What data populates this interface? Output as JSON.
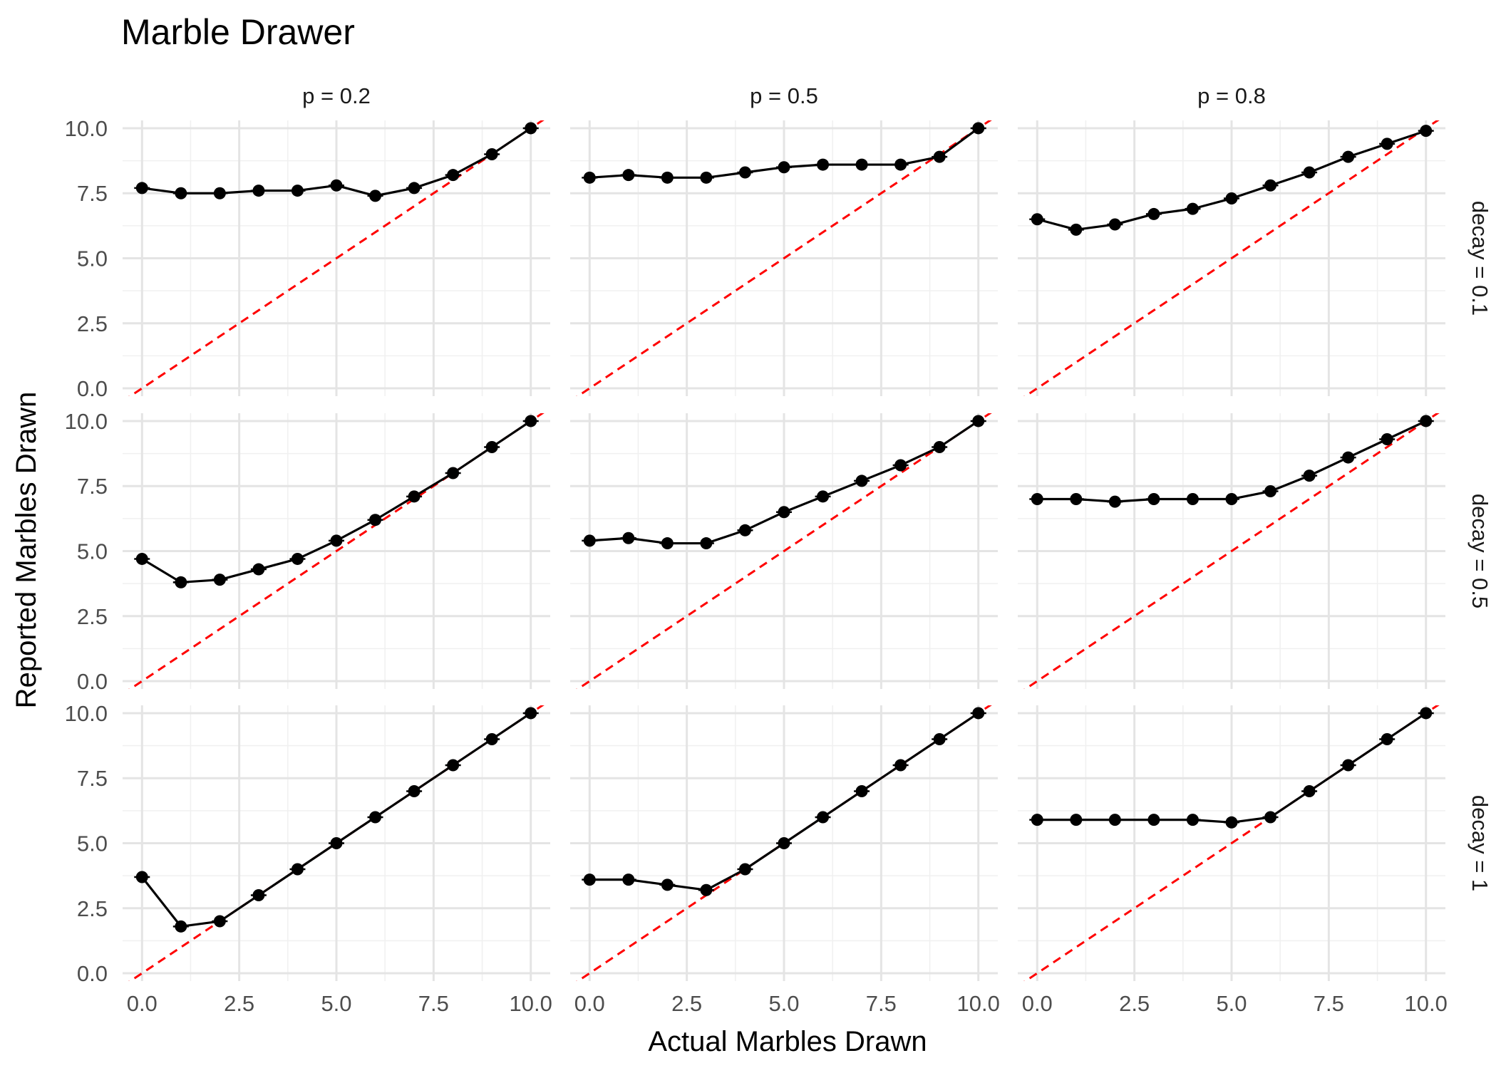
{
  "chart_data": {
    "type": "line",
    "title": "Marble Drawer",
    "xlabel": "Actual Marbles Drawn",
    "ylabel": "Reported Marbles Drawn",
    "xlim": [
      -0.5,
      10.5
    ],
    "ylim": [
      -0.3,
      10.3
    ],
    "x_ticks": [
      0,
      2.5,
      5,
      7.5,
      10
    ],
    "x_tick_labels": [
      "0.0",
      "2.5",
      "5.0",
      "7.5",
      "10.0"
    ],
    "y_ticks": [
      0,
      2.5,
      5,
      7.5,
      10
    ],
    "y_tick_labels": [
      "0.0",
      "2.5",
      "5.0",
      "7.5",
      "10.0"
    ],
    "grid": true,
    "x": [
      0,
      1,
      2,
      3,
      4,
      5,
      6,
      7,
      8,
      9,
      10
    ],
    "columns": [
      "p = 0.2",
      "p = 0.5",
      "p = 0.8"
    ],
    "rows": [
      "decay = 0.1",
      "decay = 0.5",
      "decay = 1"
    ],
    "reference_line": {
      "type": "identity",
      "color": "#ff0000",
      "style": "dashed"
    },
    "line_color": "#000000",
    "panels": [
      {
        "row": 0,
        "col": 0,
        "values": [
          7.7,
          7.5,
          7.5,
          7.6,
          7.6,
          7.8,
          7.4,
          7.7,
          8.2,
          9.0,
          10.0
        ]
      },
      {
        "row": 0,
        "col": 1,
        "values": [
          8.1,
          8.2,
          8.1,
          8.1,
          8.3,
          8.5,
          8.6,
          8.6,
          8.6,
          8.9,
          10.0
        ]
      },
      {
        "row": 0,
        "col": 2,
        "values": [
          6.5,
          6.1,
          6.3,
          6.7,
          6.9,
          7.3,
          7.8,
          8.3,
          8.9,
          9.4,
          9.9
        ]
      },
      {
        "row": 1,
        "col": 0,
        "values": [
          4.7,
          3.8,
          3.9,
          4.3,
          4.7,
          5.4,
          6.2,
          7.1,
          8.0,
          9.0,
          10.0
        ]
      },
      {
        "row": 1,
        "col": 1,
        "values": [
          5.4,
          5.5,
          5.3,
          5.3,
          5.8,
          6.5,
          7.1,
          7.7,
          8.3,
          9.0,
          10.0
        ]
      },
      {
        "row": 1,
        "col": 2,
        "values": [
          7.0,
          7.0,
          6.9,
          7.0,
          7.0,
          7.0,
          7.3,
          7.9,
          8.6,
          9.3,
          10.0
        ]
      },
      {
        "row": 2,
        "col": 0,
        "values": [
          3.7,
          1.8,
          2.0,
          3.0,
          4.0,
          5.0,
          6.0,
          7.0,
          8.0,
          9.0,
          10.0
        ]
      },
      {
        "row": 2,
        "col": 1,
        "values": [
          3.6,
          3.6,
          3.4,
          3.2,
          4.0,
          5.0,
          6.0,
          7.0,
          8.0,
          9.0,
          10.0
        ]
      },
      {
        "row": 2,
        "col": 2,
        "values": [
          5.9,
          5.9,
          5.9,
          5.9,
          5.9,
          5.8,
          6.0,
          7.0,
          8.0,
          9.0,
          10.0
        ]
      }
    ]
  }
}
